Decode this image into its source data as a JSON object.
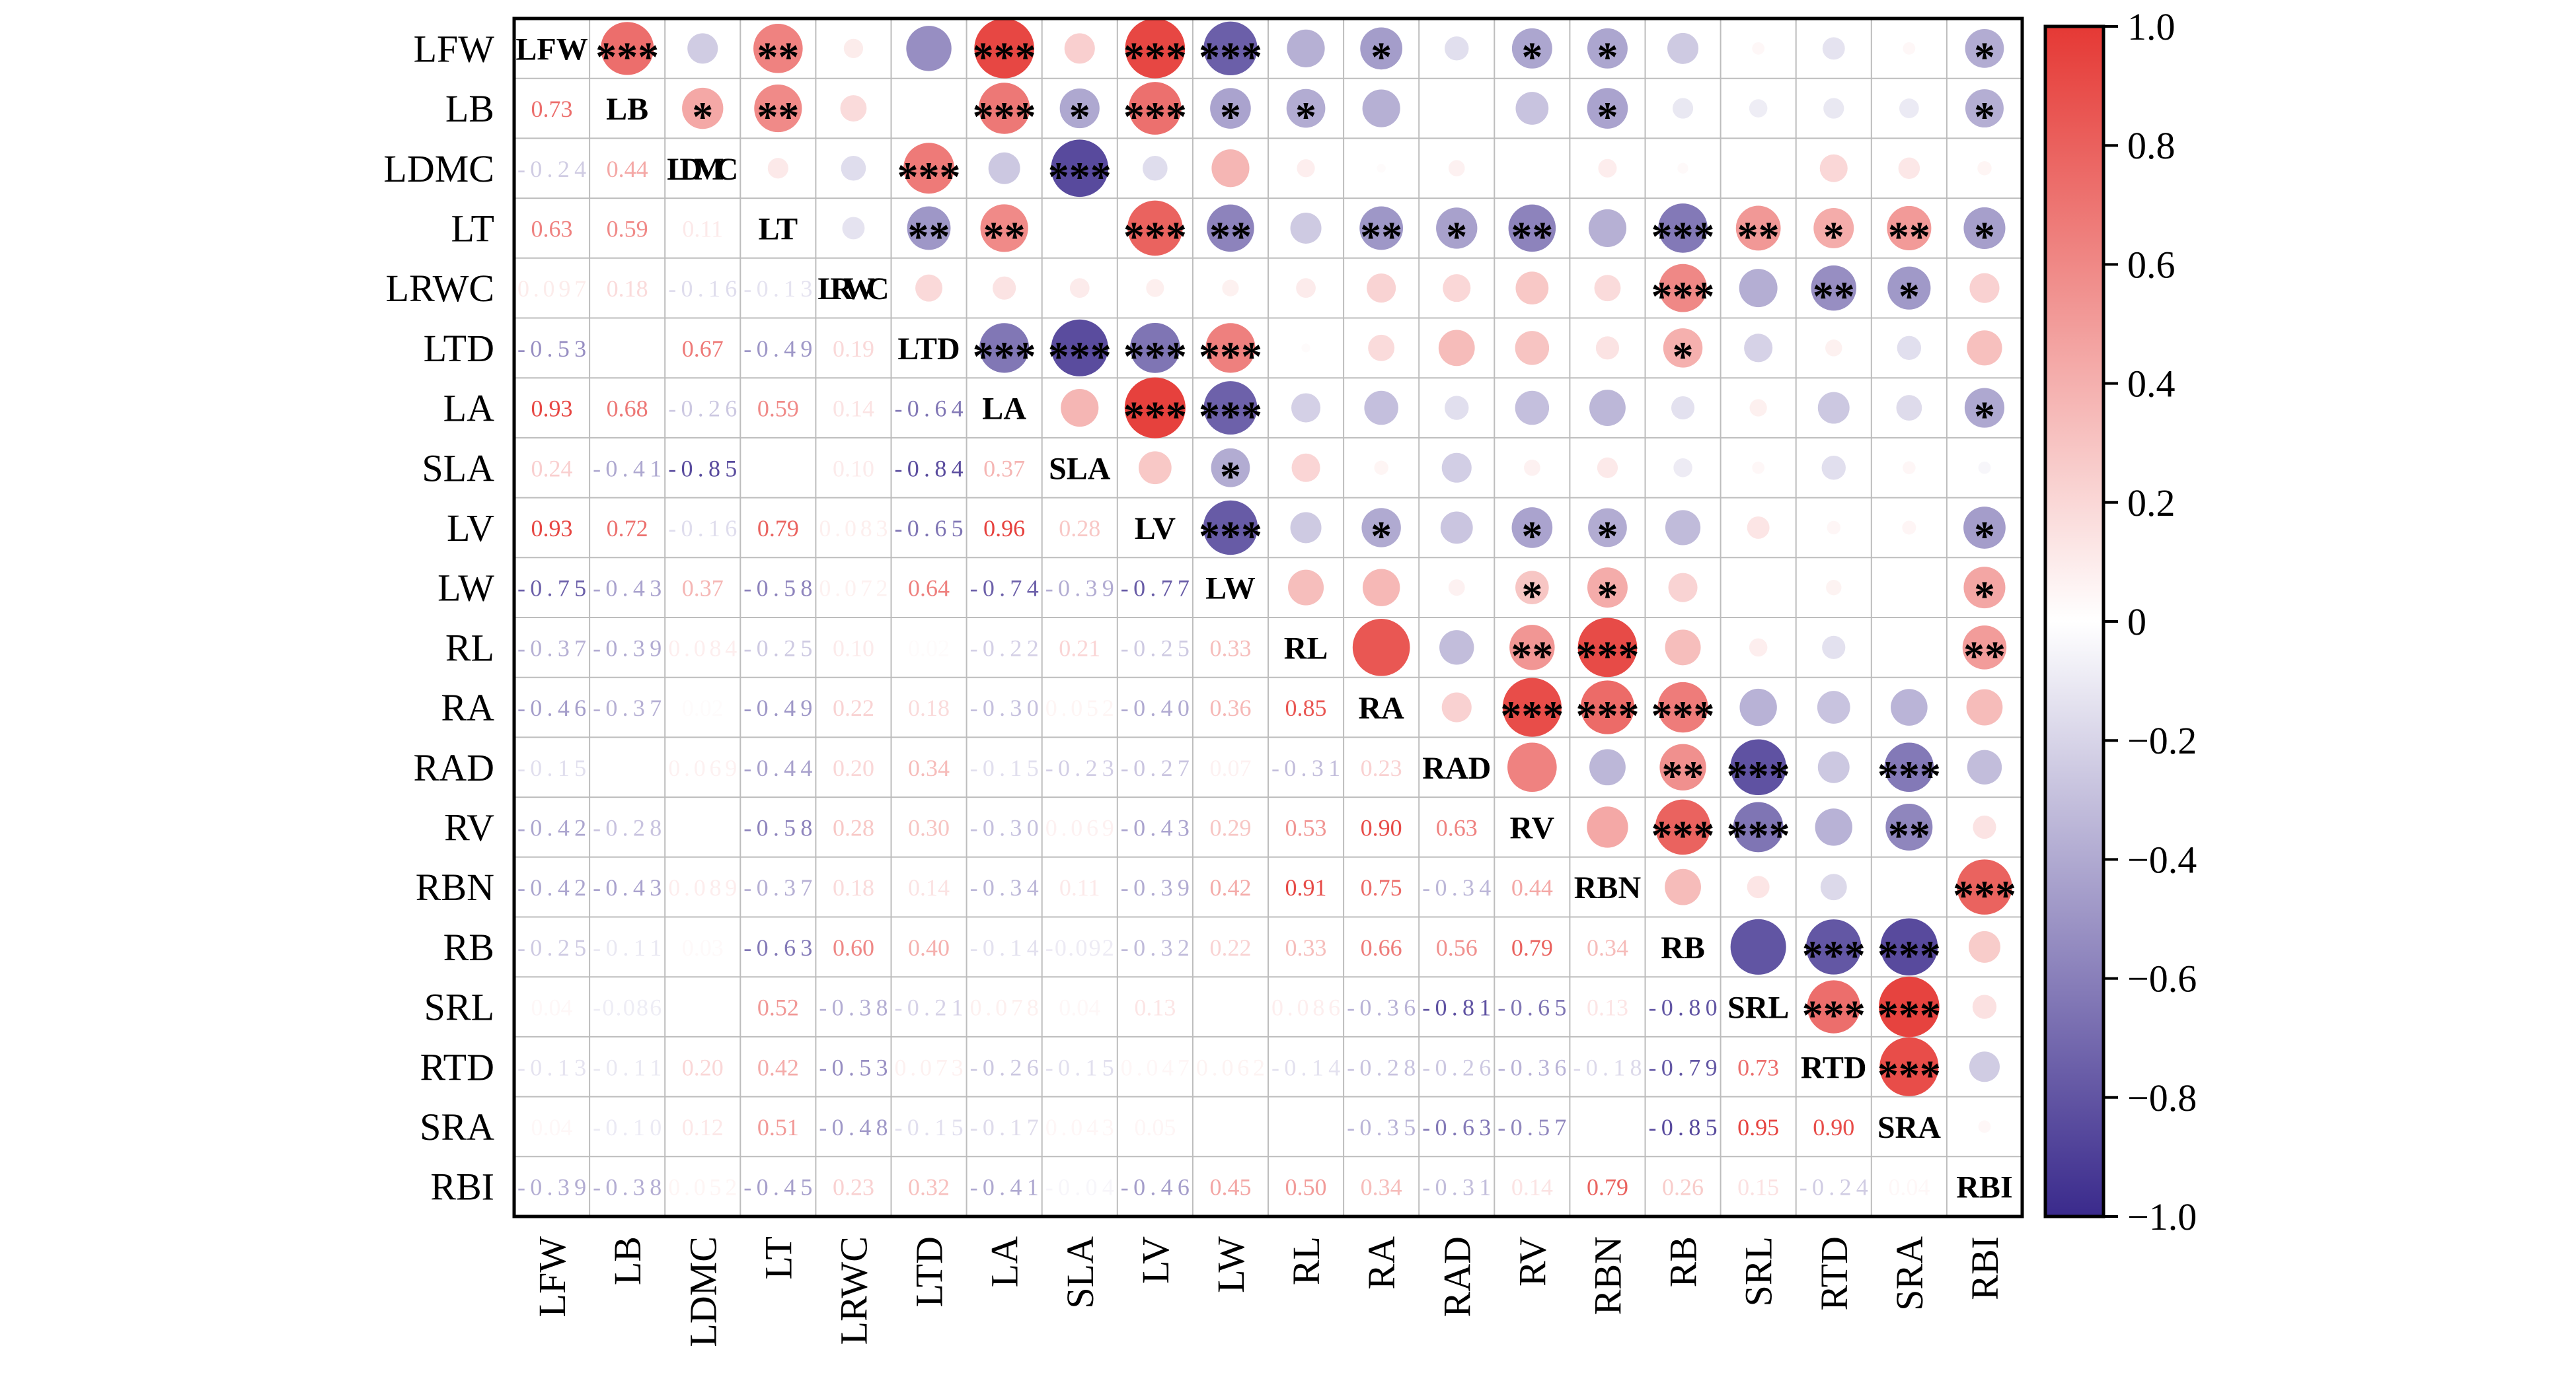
{
  "chart_data": {
    "type": "heatmap",
    "variables": [
      "LFW",
      "LB",
      "LDMC",
      "LT",
      "LRWC",
      "LTD",
      "LA",
      "SLA",
      "LV",
      "LW",
      "RL",
      "RA",
      "RAD",
      "RV",
      "RBN",
      "RB",
      "SRL",
      "RTD",
      "SRA",
      "RBI"
    ],
    "lower_triangle_values": [
      [],
      [
        "0.73"
      ],
      [
        "-0.24",
        "0.44"
      ],
      [
        "0.63",
        "0.59",
        "0.11"
      ],
      [
        "0.097",
        "0.18",
        "-0.16",
        "-0.13"
      ],
      [
        "-0.53",
        "",
        "0.67",
        "-0.49",
        "0.19"
      ],
      [
        "0.93",
        "0.68",
        "-0.26",
        "0.59",
        "0.14",
        "-0.64"
      ],
      [
        "0.24",
        "-0.41",
        "-0.85",
        "",
        "0.10",
        "-0.84",
        "0.37"
      ],
      [
        "0.93",
        "0.72",
        "-0.16",
        "0.79",
        "0.083",
        "-0.65",
        "0.96",
        "0.28"
      ],
      [
        "-0.75",
        "-0.43",
        "0.37",
        "-0.58",
        "0.072",
        "0.64",
        "-0.74",
        "-0.39",
        "-0.77"
      ],
      [
        "-0.37",
        "-0.39",
        "0.084",
        "-0.25",
        "0.10",
        "0.02",
        "-0.22",
        "0.21",
        "-0.25",
        "0.33"
      ],
      [
        "-0.46",
        "-0.37",
        "0.02",
        "-0.49",
        "0.22",
        "0.18",
        "-0.30",
        "0.052",
        "-0.40",
        "0.36",
        "0.85"
      ],
      [
        "-0.15",
        "",
        "0.069",
        "-0.44",
        "0.20",
        "0.34",
        "-0.15",
        "-0.23",
        "-0.27",
        "0.07",
        "-0.31",
        "0.23"
      ],
      [
        "-0.42",
        "-0.28",
        "",
        "-0.58",
        "0.28",
        "0.30",
        "-0.30",
        "0.069",
        "-0.43",
        "0.29",
        "0.53",
        "0.90",
        "0.63"
      ],
      [
        "-0.42",
        "-0.43",
        "0.089",
        "-0.37",
        "0.18",
        "0.14",
        "-0.34",
        "0.11",
        "-0.39",
        "0.42",
        "0.91",
        "0.75",
        "-0.34",
        "0.44"
      ],
      [
        "-0.25",
        "-0.11",
        "0.03",
        "-0.63",
        "0.60",
        "0.40",
        "-0.14",
        "-0.092",
        "-0.32",
        "0.22",
        "0.33",
        "0.66",
        "0.56",
        "0.79",
        "0.34"
      ],
      [
        "0.04",
        "-0.086",
        "",
        "0.52",
        "-0.38",
        "-0.21",
        "0.078",
        "0.04",
        "0.13",
        "",
        "0.086",
        "-0.36",
        "-0.81",
        "-0.65",
        "0.13",
        "-0.80"
      ],
      [
        "-0.13",
        "-0.11",
        "0.20",
        "0.42",
        "-0.53",
        "0.073",
        "-0.26",
        "-0.15",
        "0.047",
        "0.062",
        "-0.14",
        "-0.28",
        "-0.26",
        "-0.36",
        "-0.18",
        "-0.79",
        "0.73"
      ],
      [
        "0.04",
        "-0.10",
        "0.12",
        "0.51",
        "-0.48",
        "-0.15",
        "-0.17",
        "0.043",
        "0.05",
        "",
        "",
        "-0.35",
        "-0.63",
        "-0.57",
        "",
        "-0.85",
        "0.95",
        "0.90"
      ],
      [
        "-0.39",
        "-0.38",
        "0.052",
        "-0.45",
        "0.23",
        "0.32",
        "-0.41",
        "-0.04",
        "-0.46",
        "0.45",
        "0.50",
        "0.34",
        "-0.31",
        "0.14",
        "0.79",
        "0.26",
        "0.15",
        "-0.24",
        "0.04"
      ]
    ],
    "significance_stars": [
      [],
      [
        "***"
      ],
      [
        "",
        "*"
      ],
      [
        "**",
        "**",
        ""
      ],
      [
        "",
        "",
        "",
        ""
      ],
      [
        "",
        "",
        "***",
        "**",
        ""
      ],
      [
        "***",
        "***",
        "",
        "**",
        "",
        "***"
      ],
      [
        "",
        "*",
        "***",
        "",
        "",
        "***",
        ""
      ],
      [
        "***",
        "***",
        "",
        "***",
        "",
        "***",
        "***",
        ""
      ],
      [
        "***",
        "*",
        "",
        "**",
        "",
        "***",
        "***",
        "*",
        "***"
      ],
      [
        "",
        "*",
        "",
        "",
        "",
        "",
        "",
        "",
        "",
        ""
      ],
      [
        "*",
        "",
        "",
        "**",
        "",
        "",
        "",
        "",
        "*",
        "",
        ""
      ],
      [
        "",
        "",
        "",
        "*",
        "",
        "",
        "",
        "",
        "",
        "",
        "",
        ""
      ],
      [
        "*",
        "",
        "",
        "**",
        "",
        "",
        "",
        "",
        "*",
        "*",
        "**",
        "***",
        ""
      ],
      [
        "*",
        "*",
        "",
        "",
        "",
        "",
        "",
        "",
        "*",
        "*",
        "***",
        "***",
        "",
        ""
      ],
      [
        "",
        "",
        "",
        "***",
        "***",
        "*",
        "",
        "",
        "",
        "",
        "",
        "***",
        "**",
        "***",
        ""
      ],
      [
        "",
        "",
        "",
        "**",
        "",
        "",
        "",
        "",
        "",
        "",
        "",
        "",
        "***",
        "***",
        "",
        ""
      ],
      [
        "",
        "",
        "",
        "*",
        "**",
        "",
        "",
        "",
        "",
        "",
        "",
        "",
        "",
        "",
        "",
        "***",
        "***"
      ],
      [
        "",
        "",
        "",
        "**",
        "*",
        "",
        "",
        "",
        "",
        "",
        "",
        "",
        "***",
        "**",
        "",
        "***",
        "***",
        "***"
      ],
      [
        "*",
        "*",
        "",
        "*",
        "",
        "",
        "*",
        "",
        "*",
        "*",
        "**",
        "",
        "",
        "",
        "***",
        "",
        "",
        "",
        ""
      ]
    ],
    "colorbar": {
      "ticks": [
        "1.0",
        "0.8",
        "0.6",
        "0.4",
        "0.2",
        "0",
        "−0.2",
        "−0.4",
        "−0.6",
        "−0.8",
        "−1.0"
      ],
      "range": [
        -1.0,
        1.0
      ]
    },
    "colors": {
      "positive": "#e53935",
      "negative": "#3a2a8c",
      "zero": "#ffffff",
      "grid": "#bdbdbd",
      "frame": "#000000",
      "text": "#000000"
    }
  }
}
